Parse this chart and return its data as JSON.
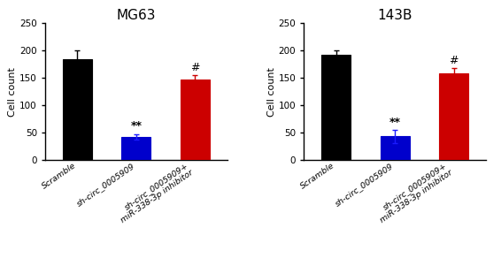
{
  "panels": [
    {
      "title": "MG63",
      "ylabel": "Cell count",
      "ylim": [
        0,
        250
      ],
      "yticks": [
        0,
        50,
        100,
        150,
        200,
        250
      ],
      "values": [
        185,
        42,
        147
      ],
      "errors": [
        15,
        5,
        8
      ],
      "colors": [
        "#000000",
        "#0000CC",
        "#CC0000"
      ],
      "error_colors": [
        "#000000",
        "#1a1aff",
        "#CC0000"
      ],
      "annotations": [
        "",
        "**",
        "#"
      ],
      "categories": [
        "Scramble",
        "sh-circ_0005909",
        "sh-circ_0005909+\nmiR-338-3p inhibitor"
      ]
    },
    {
      "title": "143B",
      "ylabel": "Cell count",
      "ylim": [
        0,
        250
      ],
      "yticks": [
        0,
        50,
        100,
        150,
        200,
        250
      ],
      "values": [
        193,
        43,
        158
      ],
      "errors": [
        7,
        12,
        10
      ],
      "colors": [
        "#000000",
        "#0000CC",
        "#CC0000"
      ],
      "error_colors": [
        "#000000",
        "#1a1aff",
        "#CC0000"
      ],
      "annotations": [
        "",
        "**",
        "#"
      ],
      "categories": [
        "Scramble",
        "sh-circ_0005909",
        "sh-circ_0005909+\nmiR-338-3p inhibitor"
      ]
    }
  ],
  "bar_width": 0.5,
  "title_fontsize": 11,
  "label_fontsize": 8,
  "tick_fontsize": 7.5,
  "annot_fontsize": 9,
  "xtick_fontsize": 6.8,
  "background_color": "#ffffff",
  "figsize": [
    5.66,
    2.92
  ],
  "dpi": 100
}
